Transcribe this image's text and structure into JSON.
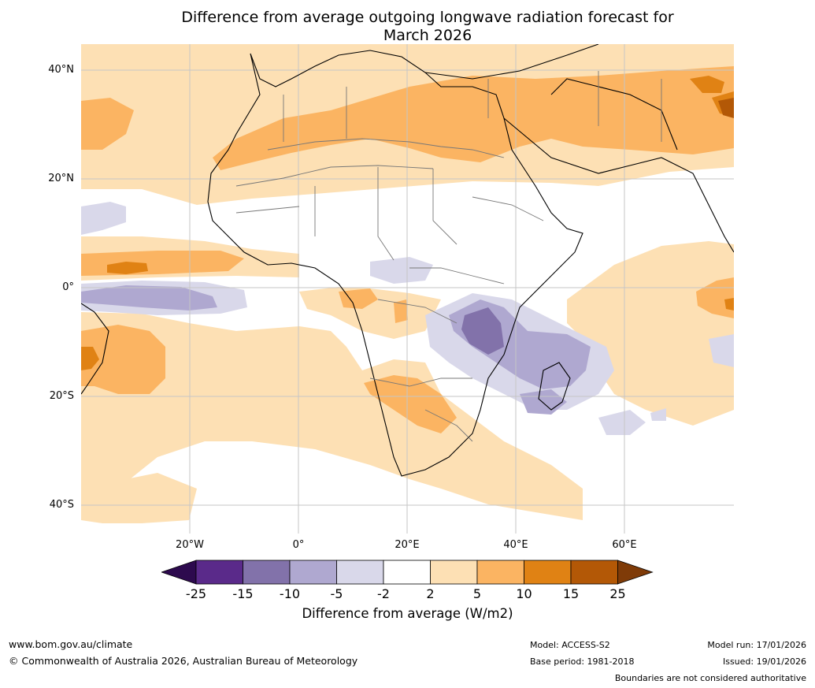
{
  "title": {
    "line1": "Difference from average outgoing longwave radiation forecast for",
    "line2": "March 2026"
  },
  "map": {
    "lat_labels": [
      "40°N",
      "20°N",
      "0°",
      "20°S",
      "40°S"
    ],
    "lon_labels": [
      "20°W",
      "0°",
      "20°E",
      "40°E",
      "60°E"
    ]
  },
  "colorbar": {
    "title": "Difference from average (W/m2)",
    "ticks": [
      "-25",
      "-15",
      "-10",
      "-5",
      "-2",
      "2",
      "5",
      "10",
      "15",
      "25"
    ],
    "colors": [
      "#2d0a4e",
      "#5a2a8a",
      "#8272aa",
      "#afa8d0",
      "#d9d8ea",
      "#ffffff",
      "#fde0b4",
      "#fbb462",
      "#e08214",
      "#b35806",
      "#7f3b08"
    ]
  },
  "footer": {
    "website": "www.bom.gov.au/climate",
    "copyright": "© Commonwealth of Australia 2026, Australian Bureau of Meteorology",
    "model": "Model: ACCESS-S2",
    "base_period": "Base period: 1981-2018",
    "model_run": "Model run: 17/01/2026",
    "issued": "Issued: 19/01/2026",
    "disclaimer": "Boundaries are not considered authoritative"
  }
}
